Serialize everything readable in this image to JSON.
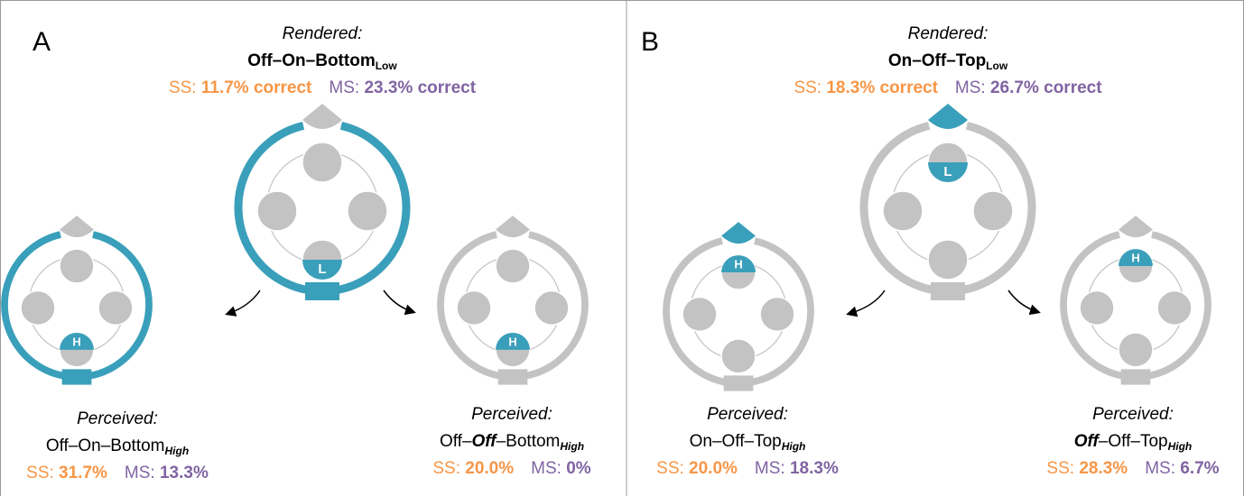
{
  "panels": [
    {
      "label": "A",
      "rendered": {
        "heading": "Rendered:",
        "name": [
          "Off–On–Bottom"
        ],
        "sub": "Low",
        "ss_label": "SS:",
        "ss_value": "11.7% correct",
        "ms_label": "MS:",
        "ms_value": "23.3% correct",
        "marker": "L"
      },
      "perceived": [
        {
          "heading": "Perceived:",
          "name": [
            "Off–On–Bottom"
          ],
          "sub": "High",
          "ss_label": "SS:",
          "ss_value": "31.7%",
          "ms_label": "MS:",
          "ms_value": "13.3%",
          "marker": "H"
        },
        {
          "heading": "Perceived:",
          "name": [
            "Off–",
            "Off",
            "–Bottom"
          ],
          "sub": "High",
          "ss_label": "SS:",
          "ss_value": "20.0%",
          "ms_label": "MS:",
          "ms_value": "0%",
          "marker": "H"
        }
      ]
    },
    {
      "label": "B",
      "rendered": {
        "heading": "Rendered:",
        "name": [
          "On–Off–Top"
        ],
        "sub": "Low",
        "ss_label": "SS:",
        "ss_value": "18.3% correct",
        "ms_label": "MS:",
        "ms_value": "26.7% correct",
        "marker": "L"
      },
      "perceived": [
        {
          "heading": "Perceived:",
          "name": [
            "On–Off–Top"
          ],
          "sub": "High",
          "ss_label": "SS:",
          "ss_value": "20.0%",
          "ms_label": "MS:",
          "ms_value": "18.3%",
          "marker": "H"
        },
        {
          "heading": "Perceived:",
          "name": [
            "Off",
            "–Off–Top"
          ],
          "sub": "High",
          "ss_label": "SS:",
          "ss_value": "28.3%",
          "ms_label": "MS:",
          "ms_value": "6.7%",
          "marker": "H"
        }
      ]
    }
  ]
}
